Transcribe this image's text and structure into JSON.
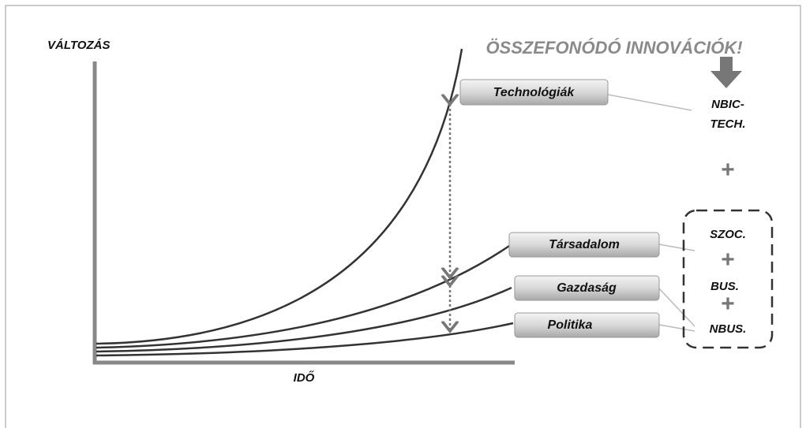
{
  "axes": {
    "y_label": "VÁLTOZÁS",
    "x_label": "IDŐ"
  },
  "headline": "ÖSSZEFONÓDÓ INNOVÁCIÓK!",
  "curves": [
    {
      "label": "Technológiák"
    },
    {
      "label": "Társadalom"
    },
    {
      "label": "Gazdaság"
    },
    {
      "label": "Politika"
    }
  ],
  "right_column": {
    "nbic": [
      "NBIC-",
      "TECH."
    ],
    "plus": "+",
    "group": [
      "SZOC.",
      "+",
      "BUS.",
      "+",
      "NBUS."
    ]
  }
}
